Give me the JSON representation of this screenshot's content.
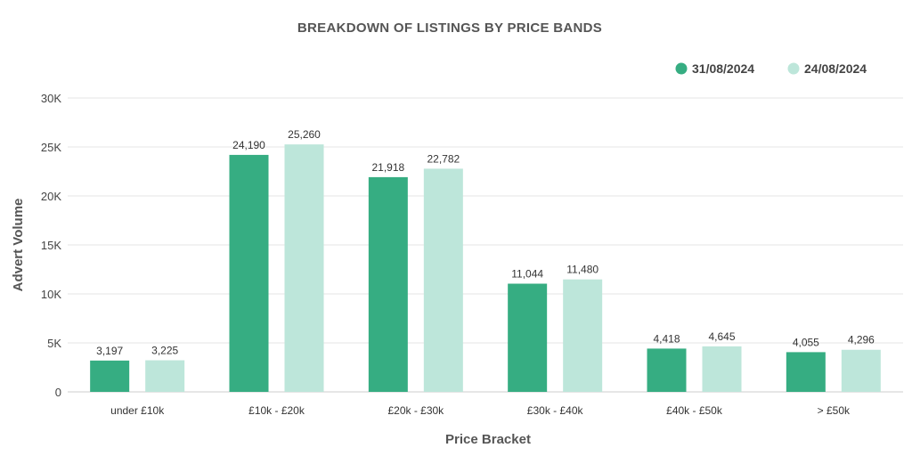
{
  "chart_data": {
    "type": "bar",
    "title": "BREAKDOWN  OF  LISTINGS  BY  PRICE BANDS",
    "xlabel": "Price Bracket",
    "ylabel": "Advert Volume",
    "categories": [
      "under £10k",
      "£10k - £20k",
      "£20k - £30k",
      "£30k - £40k",
      "£40k - £50k",
      "> £50k"
    ],
    "series": [
      {
        "name": "31/08/2024",
        "color": "#36ad82",
        "values": [
          3197,
          24190,
          21918,
          11044,
          4418,
          4055
        ],
        "labels": [
          "3,197",
          "24,190",
          "21,918",
          "11,044",
          "4,418",
          "4,055"
        ]
      },
      {
        "name": "24/08/2024",
        "color": "#bde6da",
        "values": [
          3225,
          25260,
          22782,
          11480,
          4645,
          4296
        ],
        "labels": [
          "3,225",
          "25,260",
          "22,782",
          "11,480",
          "4,645",
          "4,296"
        ]
      }
    ],
    "ylim": [
      0,
      30000
    ],
    "yticks": [
      0,
      5000,
      10000,
      15000,
      20000,
      25000,
      30000
    ],
    "ytick_labels": [
      "0",
      "5K",
      "10K",
      "15K",
      "20K",
      "25K",
      "30K"
    ],
    "grid": true,
    "legend_position": "top-right"
  }
}
